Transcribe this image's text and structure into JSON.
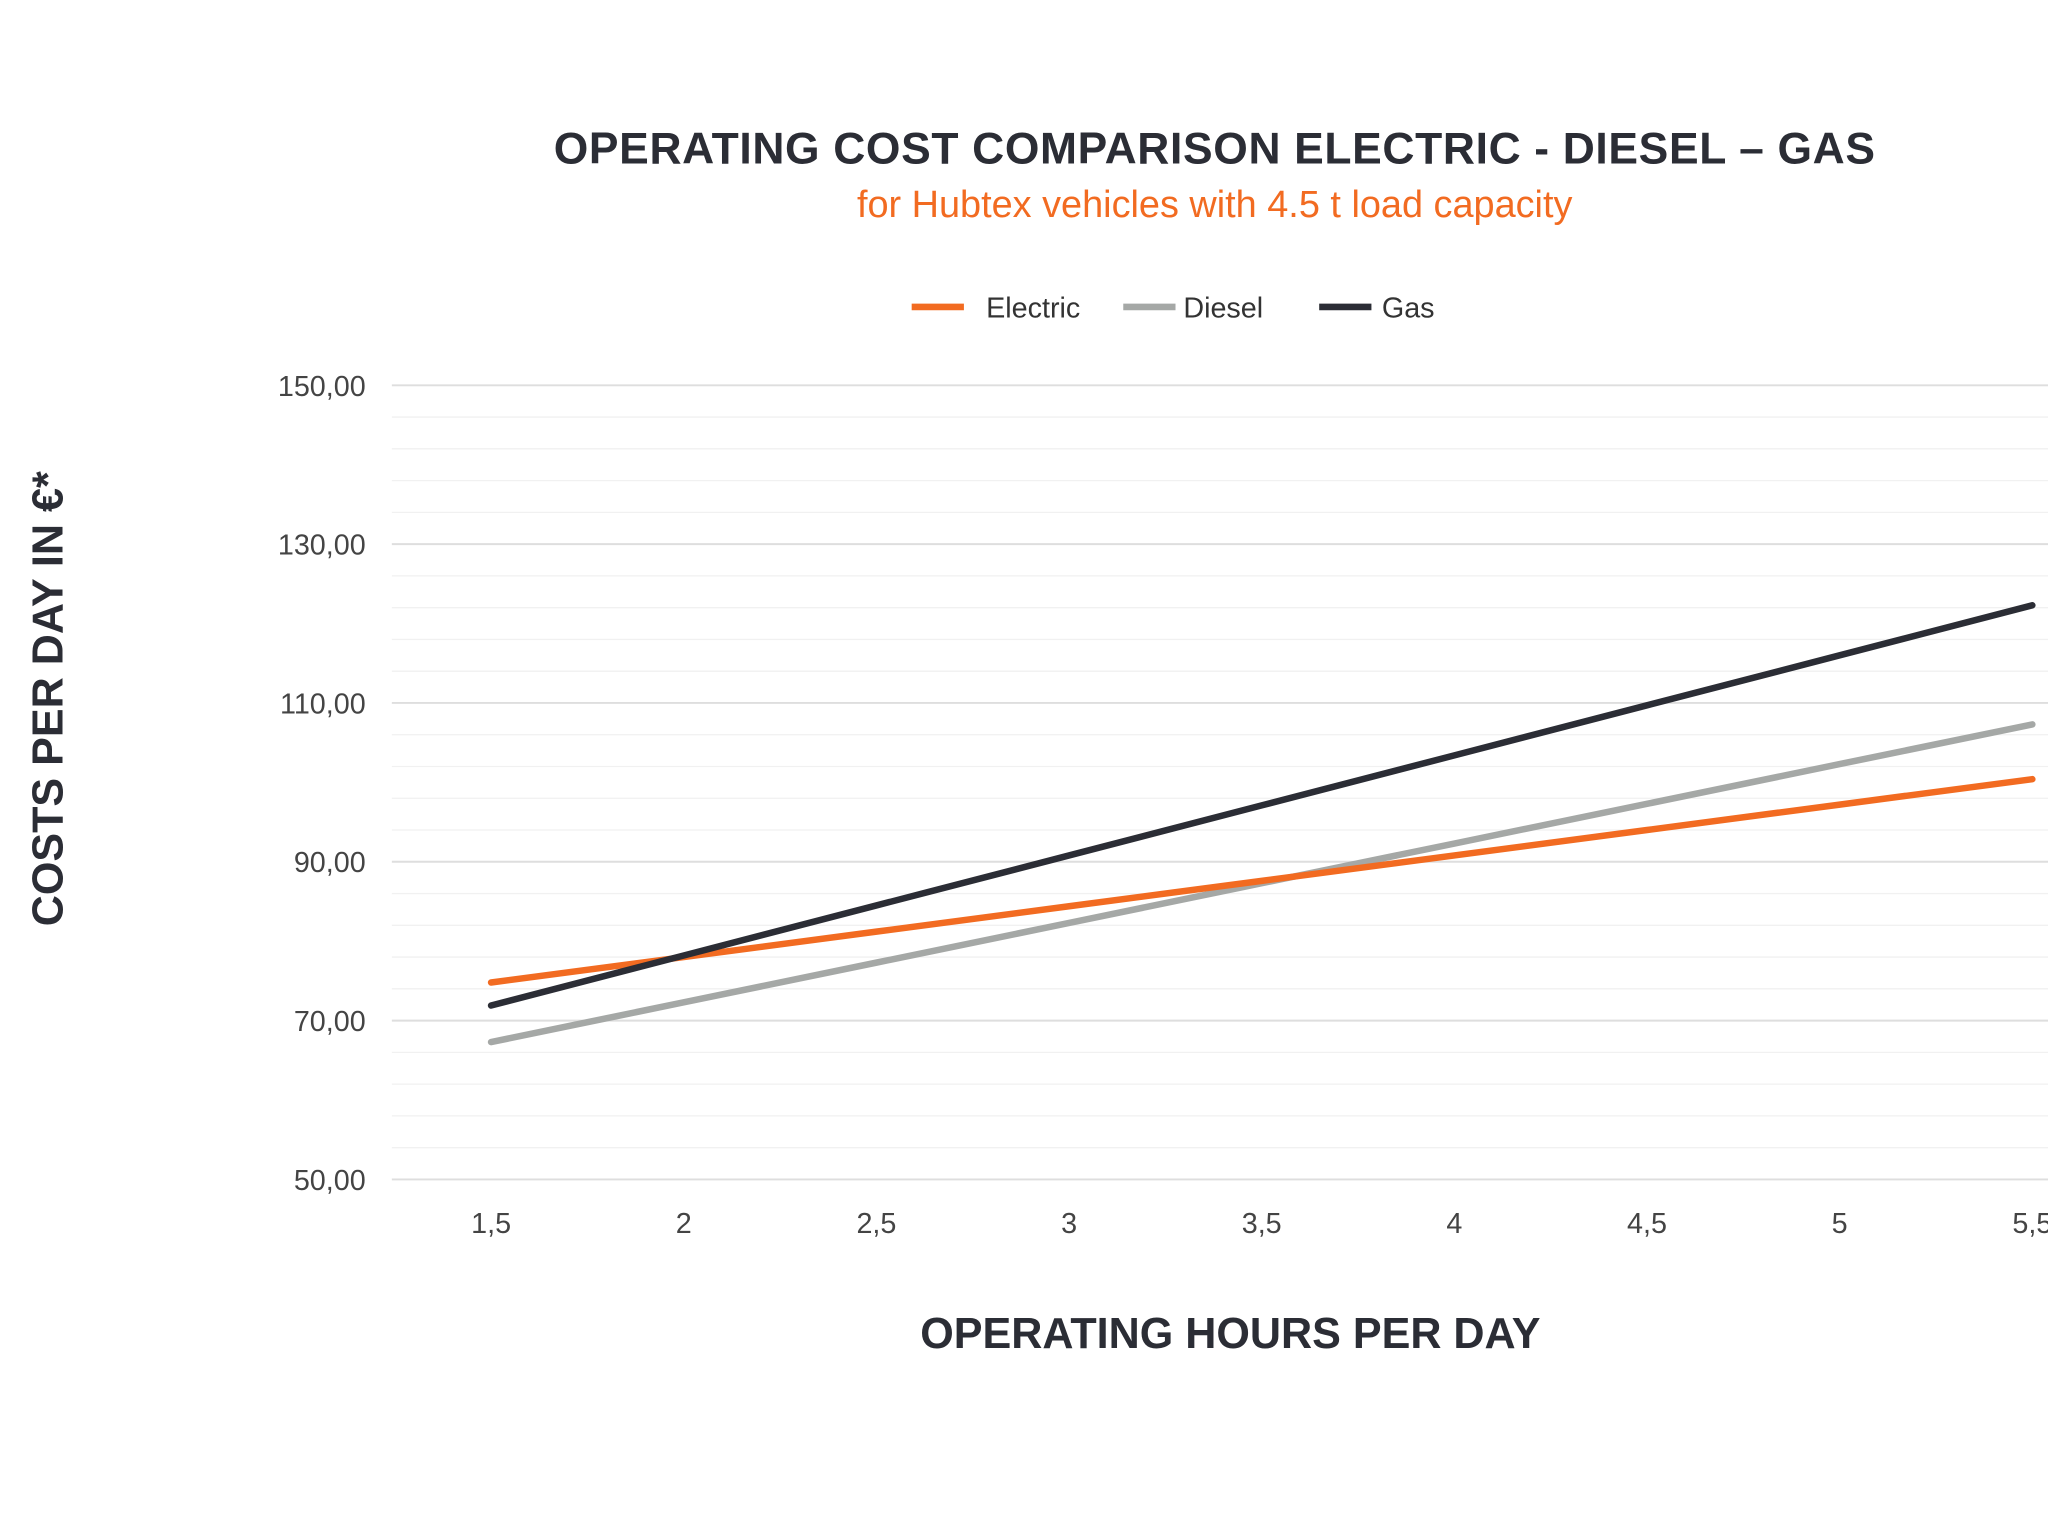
{
  "chart_data": {
    "type": "line",
    "title": "OPERATING COST COMPARISON ELECTRIC - DIESEL – GAS",
    "subtitle": "for Hubtex vehicles with 4.5 t load capacity",
    "xlabel": "OPERATING HOURS PER DAY",
    "ylabel": "COSTS PER DAY IN €*",
    "categories": [
      "1,5",
      "2",
      "2,5",
      "3",
      "3,5",
      "4",
      "4,5",
      "5",
      "5,5"
    ],
    "x": [
      1.5,
      2,
      2.5,
      3,
      3.5,
      4,
      4.5,
      5,
      5.5
    ],
    "ylim": [
      50,
      150
    ],
    "yticks": [
      50,
      70,
      90,
      110,
      130,
      150
    ],
    "ytick_labels": [
      "50,00",
      "70,00",
      "90,00",
      "110,00",
      "130,00",
      "150,00"
    ],
    "grid": true,
    "minor_grid_step": 4,
    "legend_position": "top",
    "series": [
      {
        "name": "Electric",
        "color": "#f26b21",
        "values": [
          74.8,
          78.0,
          81.2,
          84.4,
          87.6,
          90.8,
          94.0,
          97.2,
          100.4
        ]
      },
      {
        "name": "Diesel",
        "color": "#a5a8a6",
        "values": [
          67.3,
          72.3,
          77.3,
          82.3,
          87.3,
          92.3,
          97.3,
          102.3,
          107.3
        ]
      },
      {
        "name": "Gas",
        "color": "#2b2d35",
        "values": [
          71.9,
          78.2,
          84.5,
          90.8,
          97.1,
          103.4,
          109.7,
          116.0,
          122.3
        ]
      }
    ]
  }
}
